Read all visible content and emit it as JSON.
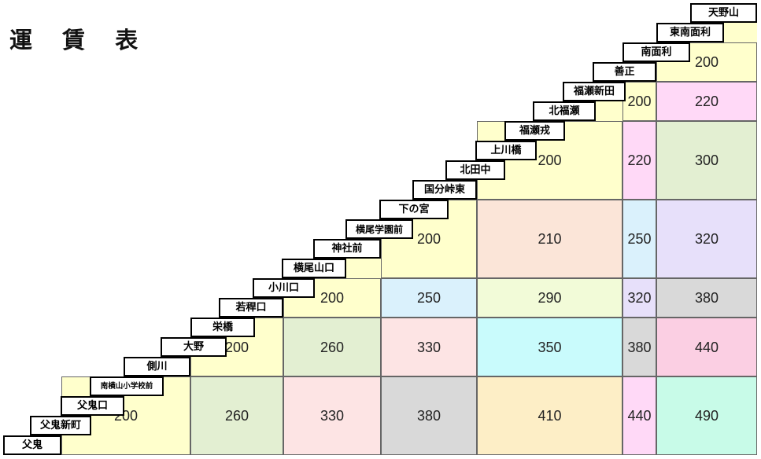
{
  "title": "運 賃 表",
  "stops": [
    "天野山",
    "東南面利",
    "南面利",
    "善正",
    "福瀬新田",
    "北福瀬",
    "福瀬戎",
    "上川橋",
    "北田中",
    "国分峠東",
    "下の宮",
    "横尾学園前",
    "神社前",
    "横尾山口",
    "小川口",
    "若稈口",
    "栄橋",
    "大野",
    "側川",
    "南横山小学校前",
    "父鬼口",
    "父鬼新町",
    "父鬼"
  ],
  "fare_blocks": [
    {
      "fare": "200",
      "color": "#ffffcc"
    },
    {
      "fare": "200",
      "color": "#ffffcc"
    },
    {
      "fare": "220",
      "color": "#ffd9f7"
    },
    {
      "fare": "200",
      "color": "#ffffcc"
    },
    {
      "fare": "220",
      "color": "#ffd9f7"
    },
    {
      "fare": "300",
      "color": "#e3efd2"
    },
    {
      "fare": "200",
      "color": "#ffffcc"
    },
    {
      "fare": "210",
      "color": "#fbe5d8"
    },
    {
      "fare": "250",
      "color": "#daf1fc"
    },
    {
      "fare": "320",
      "color": "#e7e0fa"
    },
    {
      "fare": "200",
      "color": "#ffffcc"
    },
    {
      "fare": "250",
      "color": "#daf1fc"
    },
    {
      "fare": "290",
      "color": "#f2fbd8"
    },
    {
      "fare": "320",
      "color": "#e7e0fa"
    },
    {
      "fare": "380",
      "color": "#d9d9d9"
    },
    {
      "fare": "200",
      "color": "#ffffcc"
    },
    {
      "fare": "260",
      "color": "#e3efd2"
    },
    {
      "fare": "330",
      "color": "#fde4e4"
    },
    {
      "fare": "350",
      "color": "#c9fbfc"
    },
    {
      "fare": "380",
      "color": "#d9d9d9"
    },
    {
      "fare": "440",
      "color": "#fbcfe3"
    },
    {
      "fare": "200",
      "color": "#ffffcc"
    },
    {
      "fare": "260",
      "color": "#e3efd2"
    },
    {
      "fare": "330",
      "color": "#fde4e4"
    },
    {
      "fare": "380",
      "color": "#d9d9d9"
    },
    {
      "fare": "410",
      "color": "#fdeec6"
    },
    {
      "fare": "440",
      "color": "#ffd9f7"
    },
    {
      "fare": "490",
      "color": "#c8fbe8"
    }
  ]
}
